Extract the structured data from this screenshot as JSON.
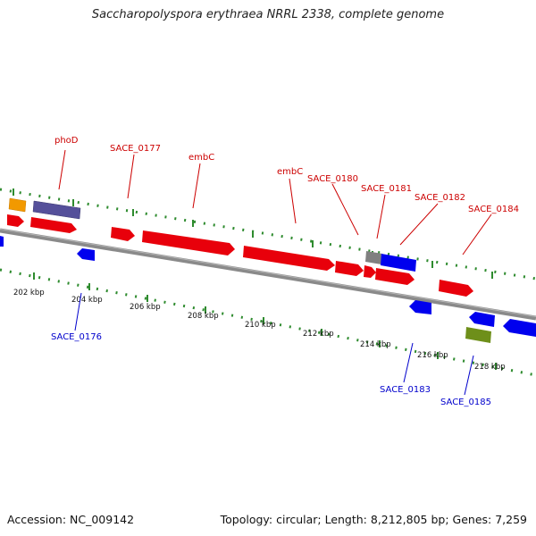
{
  "title": "Saccharopolyspora erythraea NRRL 2338, complete genome",
  "accession_text": "Accession: NC_009142",
  "stats_text": "Topology: circular; Length: 8,212,805 bp; Genes: 7,259",
  "colors": {
    "forward_gene": "#e8000b",
    "reverse_gene": "#0000ee",
    "orange": "#f29900",
    "purple": "#55509a",
    "gray": "#808080",
    "olive": "#6e8f1a",
    "backbone": "#888888",
    "tick": "#2e8b2e",
    "label_top": "#cc0000",
    "label_bottom": "#0000cc"
  },
  "ruler": {
    "unit": "kbp",
    "ticks": [
      "202 kbp",
      "204 kbp",
      "206 kbp",
      "208 kbp",
      "210 kbp",
      "212 kbp",
      "214 kbp",
      "216 kbp",
      "218 kbp"
    ]
  },
  "top_labels": [
    "phoD",
    "SACE_0177",
    "embC",
    "embC",
    "SACE_0180",
    "SACE_0181",
    "SACE_0182",
    "SACE_0184"
  ],
  "bottom_labels": [
    "SACE_0176",
    "SACE_0183",
    "SACE_0185"
  ]
}
